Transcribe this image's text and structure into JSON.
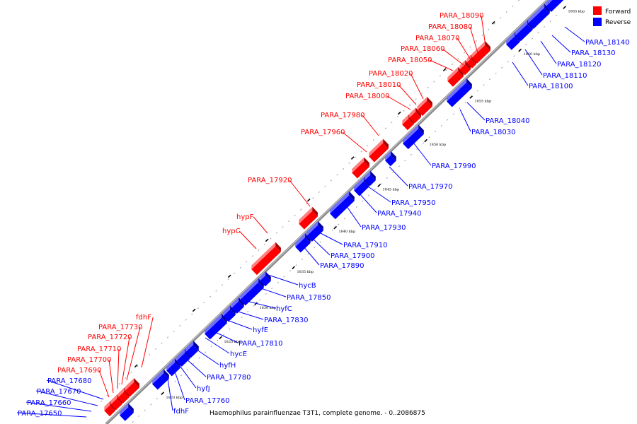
{
  "caption": "Haemophilus parainfluenzae T3T1, complete genome. - 0..2086875",
  "legend": [
    {
      "label": "Forward",
      "color": "#ff0000"
    },
    {
      "label": "Reverse",
      "color": "#0000ff"
    }
  ],
  "colors": {
    "forward": "#ff0000",
    "reverse": "#0000ff",
    "backbone": "#888888"
  },
  "scale_ticks": [
    "1820 kbp",
    "1825 kbp",
    "1830 kbp",
    "1835 kbp",
    "1840 kbp",
    "1845 kbp",
    "1850 kbp",
    "1855 kbp",
    "1860 kbp",
    "1865 kbp"
  ],
  "forward_labels": [
    "PARA_18090",
    "PARA_18080",
    "PARA_18070",
    "PARA_18060",
    "PARA_18050",
    "PARA_18020",
    "PARA_18010",
    "PARA_18000",
    "PARA_17980",
    "PARA_17960",
    "PARA_17920",
    "hypF",
    "hypC",
    "fdhF",
    "PARA_17730",
    "PARA_17720",
    "PARA_17710",
    "PARA_17700",
    "PARA_17690"
  ],
  "reverse_labels": [
    "PARA_18140",
    "PARA_18130",
    "PARA_18120",
    "PARA_18110",
    "PARA_18100",
    "PARA_18040",
    "PARA_18030",
    "PARA_17990",
    "PARA_17970",
    "PARA_17950",
    "PARA_17940",
    "PARA_17930",
    "PARA_17910",
    "PARA_17900",
    "PARA_17890",
    "hycB",
    "PARA_17850",
    "hyfC",
    "PARA_17830",
    "hyfE",
    "PARA_17810",
    "hycE",
    "hyfH",
    "PARA_17780",
    "hyfJ",
    "PARA_17760",
    "fdhF",
    "PARA_17680",
    "PARA_17670",
    "PARA_17660",
    "PARA_17650"
  ]
}
